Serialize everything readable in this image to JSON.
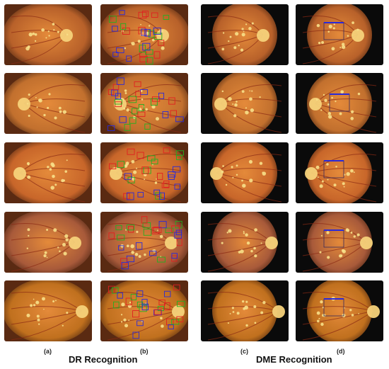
{
  "panels": {
    "a": "(a)",
    "b": "(b)",
    "c": "(c)",
    "d": "(d)"
  },
  "titles": {
    "dr": "DR Recognition",
    "dme": "DME Recognition"
  },
  "box_colors": {
    "red": "#e02020",
    "blue": "#2a2ad8",
    "green": "#22b022"
  },
  "image_subject": "retinal fundus photographs with lesion detection boxes"
}
